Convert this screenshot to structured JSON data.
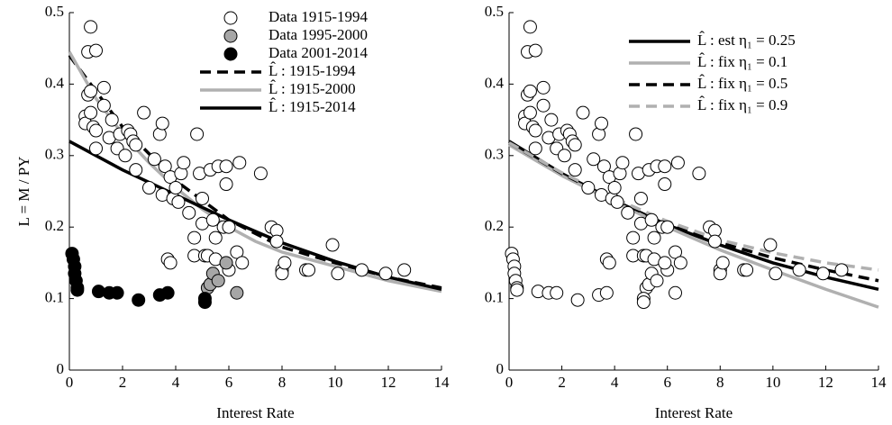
{
  "chart_data": [
    {
      "type": "scatter",
      "xlabel": "Interest Rate",
      "ylabel": "L = M / PY",
      "xlim": [
        0,
        14
      ],
      "ylim": [
        0,
        0.5
      ],
      "xticks": [
        0,
        2,
        4,
        6,
        8,
        10,
        12,
        14
      ],
      "yticks": [
        0,
        0.1,
        0.2,
        0.3,
        0.4,
        0.5
      ],
      "legend": "top-right",
      "series": [
        {
          "name": "Data 1915-1994",
          "kind": "marker",
          "color": "#ffffff",
          "x": [
            0.8,
            0.7,
            1.0,
            0.6,
            0.6,
            0.7,
            0.8,
            0.8,
            0.9,
            1.0,
            1.0,
            1.3,
            1.3,
            1.5,
            1.6,
            1.8,
            1.9,
            2.1,
            2.2,
            2.3,
            2.4,
            2.5,
            2.5,
            2.8,
            3.0,
            3.2,
            3.4,
            3.5,
            3.5,
            3.6,
            3.7,
            3.8,
            3.8,
            3.9,
            4.0,
            4.1,
            4.2,
            4.3,
            4.5,
            4.7,
            4.7,
            4.8,
            4.9,
            5.0,
            5.0,
            5.1,
            5.2,
            5.3,
            5.4,
            5.5,
            5.5,
            5.6,
            5.8,
            5.9,
            5.9,
            6.0,
            6.0,
            6.3,
            6.4,
            6.5,
            7.2,
            7.6,
            7.8,
            7.8,
            8.0,
            8.0,
            8.1,
            8.9,
            9.0,
            9.9,
            10.1,
            11.0,
            11.9,
            12.6
          ],
          "values": [
            0.48,
            0.445,
            0.447,
            0.355,
            0.345,
            0.385,
            0.39,
            0.36,
            0.34,
            0.31,
            0.335,
            0.395,
            0.37,
            0.325,
            0.35,
            0.31,
            0.33,
            0.3,
            0.335,
            0.33,
            0.32,
            0.28,
            0.315,
            0.36,
            0.255,
            0.295,
            0.33,
            0.345,
            0.245,
            0.285,
            0.155,
            0.15,
            0.27,
            0.24,
            0.255,
            0.235,
            0.275,
            0.29,
            0.22,
            0.185,
            0.16,
            0.33,
            0.275,
            0.24,
            0.205,
            0.16,
            0.16,
            0.28,
            0.21,
            0.185,
            0.155,
            0.285,
            0.2,
            0.26,
            0.285,
            0.2,
            0.14,
            0.165,
            0.29,
            0.15,
            0.275,
            0.2,
            0.195,
            0.18,
            0.14,
            0.135,
            0.15,
            0.14,
            0.14,
            0.175,
            0.135,
            0.14,
            0.135,
            0.14
          ]
        },
        {
          "name": "Data 1995-2000",
          "kind": "marker",
          "color": "#a6a6a6",
          "x": [
            5.2,
            5.3,
            5.4,
            5.6,
            5.9,
            6.3
          ],
          "values": [
            0.115,
            0.12,
            0.135,
            0.125,
            0.15,
            0.108
          ]
        },
        {
          "name": "Data 2001-2014",
          "kind": "marker",
          "color": "#000000",
          "x": [
            0.1,
            0.15,
            0.2,
            0.2,
            0.25,
            0.3,
            0.3,
            1.1,
            1.5,
            1.8,
            2.6,
            3.4,
            3.7,
            5.1,
            5.1
          ],
          "values": [
            0.163,
            0.155,
            0.145,
            0.135,
            0.125,
            0.115,
            0.112,
            0.11,
            0.108,
            0.108,
            0.098,
            0.105,
            0.108,
            0.1,
            0.095
          ]
        },
        {
          "name": "L̂ : 1915-1994",
          "kind": "line",
          "dash": true,
          "color": "#000000",
          "x": [
            0,
            2,
            4,
            6,
            8,
            10,
            12,
            14
          ],
          "values": [
            0.44,
            0.34,
            0.265,
            0.21,
            0.172,
            0.15,
            0.13,
            0.115
          ]
        },
        {
          "name": "L̂ : 1915-2000",
          "kind": "line",
          "dash": false,
          "color": "#b0b0b0",
          "x": [
            0,
            1,
            2,
            3,
            4,
            5,
            6,
            7,
            8,
            10,
            12,
            14
          ],
          "values": [
            0.445,
            0.38,
            0.33,
            0.29,
            0.255,
            0.225,
            0.2,
            0.18,
            0.165,
            0.145,
            0.125,
            0.11
          ]
        },
        {
          "name": "L̂ : 1915-2014",
          "kind": "line",
          "dash": false,
          "color": "#000000",
          "x": [
            0,
            2,
            4,
            6,
            8,
            10,
            12,
            14
          ],
          "values": [
            0.32,
            0.28,
            0.245,
            0.21,
            0.178,
            0.152,
            0.13,
            0.113
          ]
        }
      ]
    },
    {
      "type": "scatter",
      "xlabel": "Interest Rate",
      "xlim": [
        0,
        14
      ],
      "ylim": [
        0,
        0.5
      ],
      "xticks": [
        0,
        2,
        4,
        6,
        8,
        10,
        12,
        14
      ],
      "yticks": [
        0,
        0.1,
        0.2,
        0.3,
        0.4,
        0.5
      ],
      "legend": "top-right",
      "series": [
        {
          "kind": "marker",
          "color": "#ffffff",
          "x": [
            0.8,
            0.7,
            1.0,
            0.6,
            0.6,
            0.7,
            0.8,
            0.8,
            0.9,
            1.0,
            1.0,
            1.3,
            1.3,
            1.5,
            1.6,
            1.8,
            1.9,
            2.1,
            2.2,
            2.3,
            2.4,
            2.5,
            2.5,
            2.8,
            3.0,
            3.2,
            3.4,
            3.5,
            3.5,
            3.6,
            3.7,
            3.8,
            3.8,
            3.9,
            4.0,
            4.1,
            4.2,
            4.3,
            4.5,
            4.7,
            4.7,
            4.8,
            4.9,
            5.0,
            5.0,
            5.1,
            5.2,
            5.3,
            5.4,
            5.5,
            5.5,
            5.6,
            5.8,
            5.9,
            5.9,
            6.0,
            6.0,
            6.3,
            6.4,
            6.5,
            7.2,
            7.6,
            7.8,
            7.8,
            8.0,
            8.0,
            8.1,
            8.9,
            9.0,
            9.9,
            10.1,
            11.0,
            11.9,
            12.6,
            5.2,
            5.3,
            5.4,
            5.6,
            5.9,
            6.3,
            0.1,
            0.15,
            0.2,
            0.2,
            0.25,
            0.3,
            0.3,
            1.1,
            1.5,
            1.8,
            2.6,
            3.4,
            3.7,
            5.1,
            5.1
          ],
          "values": [
            0.48,
            0.445,
            0.447,
            0.355,
            0.345,
            0.385,
            0.39,
            0.36,
            0.34,
            0.31,
            0.335,
            0.395,
            0.37,
            0.325,
            0.35,
            0.31,
            0.33,
            0.3,
            0.335,
            0.33,
            0.32,
            0.28,
            0.315,
            0.36,
            0.255,
            0.295,
            0.33,
            0.345,
            0.245,
            0.285,
            0.155,
            0.15,
            0.27,
            0.24,
            0.255,
            0.235,
            0.275,
            0.29,
            0.22,
            0.185,
            0.16,
            0.33,
            0.275,
            0.24,
            0.205,
            0.16,
            0.16,
            0.28,
            0.21,
            0.185,
            0.155,
            0.285,
            0.2,
            0.26,
            0.285,
            0.2,
            0.14,
            0.165,
            0.29,
            0.15,
            0.275,
            0.2,
            0.195,
            0.18,
            0.14,
            0.135,
            0.15,
            0.14,
            0.14,
            0.175,
            0.135,
            0.14,
            0.135,
            0.14,
            0.115,
            0.12,
            0.135,
            0.125,
            0.15,
            0.108,
            0.163,
            0.155,
            0.145,
            0.135,
            0.125,
            0.115,
            0.112,
            0.11,
            0.108,
            0.108,
            0.098,
            0.105,
            0.108,
            0.1,
            0.095
          ]
        },
        {
          "name": "L̂ : est η₁ = 0.25",
          "kind": "line",
          "dash": false,
          "color": "#000000",
          "x": [
            0,
            2,
            4,
            6,
            8,
            10,
            12,
            14
          ],
          "values": [
            0.32,
            0.275,
            0.237,
            0.203,
            0.175,
            0.15,
            0.13,
            0.113
          ]
        },
        {
          "name": "L̂ : fix η₁ = 0.1",
          "kind": "line",
          "dash": false,
          "color": "#b0b0b0",
          "x": [
            0,
            2,
            4,
            6,
            8,
            10,
            12,
            14
          ],
          "values": [
            0.315,
            0.272,
            0.235,
            0.2,
            0.168,
            0.14,
            0.113,
            0.088
          ]
        },
        {
          "name": "L̂ : fix η₁ = 0.5",
          "kind": "line",
          "dash": true,
          "color": "#000000",
          "x": [
            0,
            2,
            4,
            6,
            8,
            10,
            12,
            14
          ],
          "values": [
            0.318,
            0.275,
            0.238,
            0.205,
            0.178,
            0.157,
            0.14,
            0.125
          ]
        },
        {
          "name": "L̂ : fix η₁ = 0.9",
          "kind": "line",
          "dash": true,
          "color": "#b0b0b0",
          "x": [
            0,
            2,
            4,
            6,
            8,
            10,
            12,
            14
          ],
          "values": [
            0.318,
            0.276,
            0.24,
            0.208,
            0.182,
            0.164,
            0.15,
            0.14
          ]
        }
      ]
    }
  ]
}
